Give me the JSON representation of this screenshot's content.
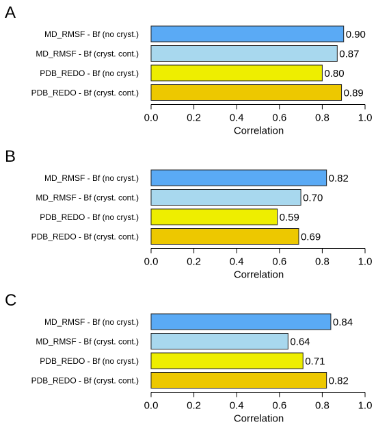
{
  "chart_data": [
    {
      "type": "bar",
      "orientation": "horizontal",
      "panel": "A",
      "categories": [
        "MD_RMSF  - Bf (no cryst.)",
        "MD_RMSF  - Bf (cryst. cont.)",
        "PDB_REDO - Bf (no cryst.)",
        "PDB_REDO - Bf (cryst. cont.)"
      ],
      "values": [
        0.9,
        0.87,
        0.8,
        0.89
      ],
      "value_labels": [
        "0.90",
        "0.87",
        "0.80",
        "0.89"
      ],
      "colors": [
        "#5aaaf5",
        "#a8d8ee",
        "#eeee00",
        "#edc800"
      ],
      "xlabel": "Correlation",
      "xlim": [
        0,
        1
      ],
      "xticks": [
        "0.0",
        "0.2",
        "0.4",
        "0.6",
        "0.8",
        "1.0"
      ],
      "grid": false
    },
    {
      "type": "bar",
      "orientation": "horizontal",
      "panel": "B",
      "categories": [
        "MD_RMSF  - Bf (no cryst.)",
        "MD_RMSF  - Bf (cryst. cont.)",
        "PDB_REDO - Bf (no cryst.)",
        "PDB_REDO - Bf (cryst. cont.)"
      ],
      "values": [
        0.82,
        0.7,
        0.59,
        0.69
      ],
      "value_labels": [
        "0.82",
        "0.70",
        "0.59",
        "0.69"
      ],
      "colors": [
        "#5aaaf5",
        "#a8d8ee",
        "#eeee00",
        "#edc800"
      ],
      "xlabel": "Correlation",
      "xlim": [
        0,
        1
      ],
      "xticks": [
        "0.0",
        "0.2",
        "0.4",
        "0.6",
        "0.8",
        "1.0"
      ],
      "grid": false
    },
    {
      "type": "bar",
      "orientation": "horizontal",
      "panel": "C",
      "categories": [
        "MD_RMSF  - Bf (no cryst.)",
        "MD_RMSF  - Bf (cryst. cont.)",
        "PDB_REDO - Bf (no cryst.)",
        "PDB_REDO - Bf (cryst. cont.)"
      ],
      "values": [
        0.84,
        0.64,
        0.71,
        0.82
      ],
      "value_labels": [
        "0.84",
        "0.64",
        "0.71",
        "0.82"
      ],
      "colors": [
        "#5aaaf5",
        "#a8d8ee",
        "#eeee00",
        "#edc800"
      ],
      "xlabel": "Correlation",
      "xlim": [
        0,
        1
      ],
      "xticks": [
        "0.0",
        "0.2",
        "0.4",
        "0.6",
        "0.8",
        "1.0"
      ],
      "grid": false
    }
  ]
}
